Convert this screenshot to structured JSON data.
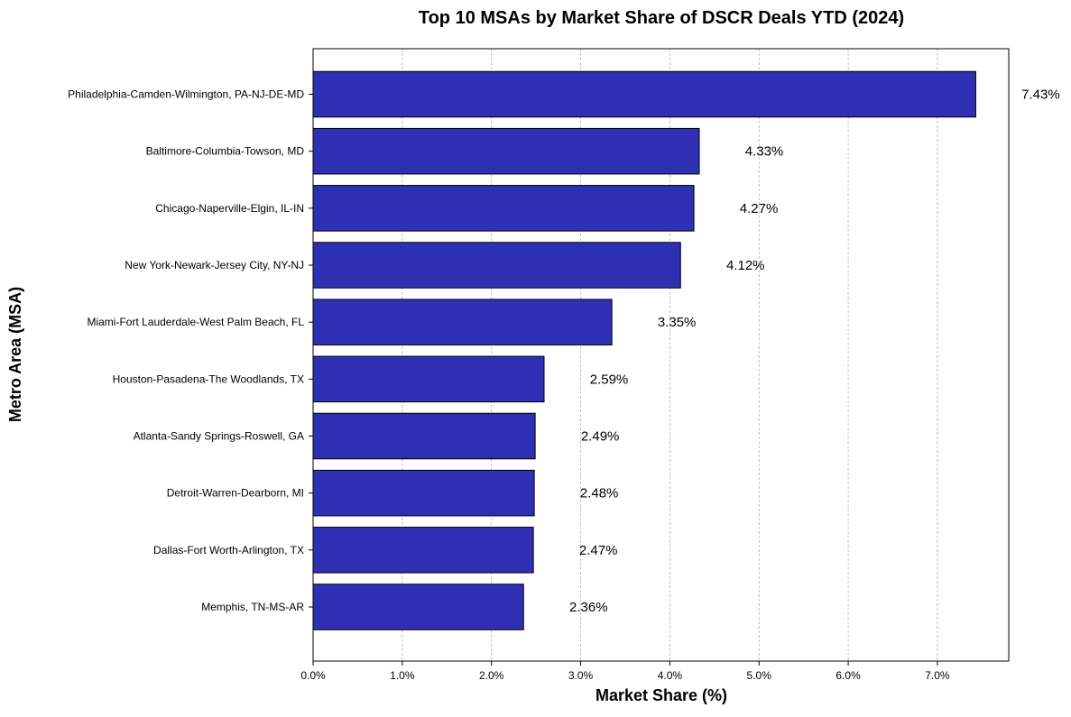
{
  "chart_data": {
    "type": "bar",
    "orientation": "horizontal",
    "title": "Top 10 MSAs by Market Share of DSCR Deals YTD (2024)",
    "xlabel": "Market Share (%)",
    "ylabel": "Metro Area (MSA)",
    "categories": [
      "Philadelphia-Camden-Wilmington, PA-NJ-DE-MD",
      "Baltimore-Columbia-Towson, MD",
      "Chicago-Naperville-Elgin, IL-IN",
      "New York-Newark-Jersey City, NY-NJ",
      "Miami-Fort Lauderdale-West Palm Beach, FL",
      "Houston-Pasadena-The Woodlands, TX",
      "Atlanta-Sandy Springs-Roswell, GA",
      "Detroit-Warren-Dearborn, MI",
      "Dallas-Fort Worth-Arlington, TX",
      "Memphis, TN-MS-AR"
    ],
    "values": [
      7.43,
      4.33,
      4.27,
      4.12,
      3.35,
      2.59,
      2.49,
      2.48,
      2.47,
      2.36
    ],
    "data_labels": [
      "7.43%",
      "4.33%",
      "4.27%",
      "4.12%",
      "3.35%",
      "2.59%",
      "2.49%",
      "2.48%",
      "2.47%",
      "2.36%"
    ],
    "xticks": [
      0,
      1,
      2,
      3,
      4,
      5,
      6,
      7
    ],
    "xtick_labels": [
      "0.0%",
      "1.0%",
      "2.0%",
      "3.0%",
      "4.0%",
      "5.0%",
      "6.0%",
      "7.0%"
    ],
    "xlim": [
      0,
      7.8
    ],
    "grid": "x-dashed",
    "bar_color": "#2f2fb3",
    "bar_edge_color": "#000000",
    "grid_color": "#b0b0b0"
  }
}
